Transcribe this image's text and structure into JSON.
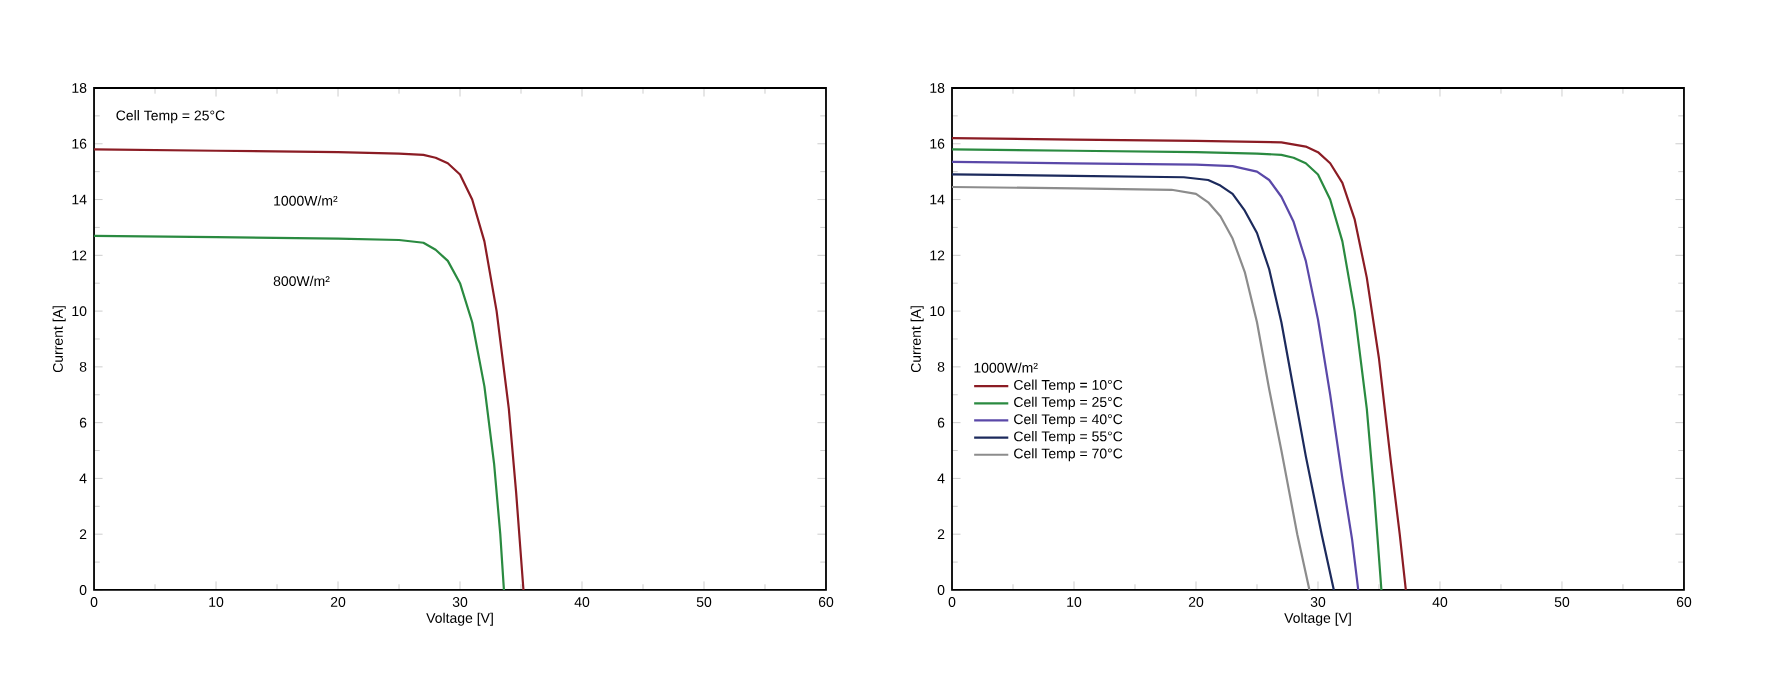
{
  "chart_data": [
    {
      "type": "line",
      "xlabel": "Voltage [V]",
      "ylabel": "Current [A]",
      "xlim": [
        0,
        60
      ],
      "ylim": [
        0,
        18
      ],
      "xticks": [
        0,
        10,
        20,
        30,
        40,
        50,
        60
      ],
      "yticks": [
        0,
        2,
        4,
        6,
        8,
        10,
        12,
        14,
        16,
        18
      ],
      "grid": false,
      "legend": false,
      "marker": "none",
      "line_style": "solid",
      "annotations": [
        "Cell Temp = 25°C",
        "1000W/m²",
        "800W/m²"
      ],
      "series": [
        {
          "color": "#8b1c24",
          "x": [
            0,
            10,
            20,
            25,
            27,
            28,
            29,
            30,
            31,
            32,
            33,
            34,
            34.6,
            35.2
          ],
          "values": [
            15.8,
            15.75,
            15.7,
            15.65,
            15.6,
            15.5,
            15.3,
            14.9,
            14.0,
            12.5,
            10.0,
            6.5,
            3.5,
            0
          ]
        },
        {
          "color": "#2a8a40",
          "x": [
            0,
            10,
            20,
            25,
            27,
            28,
            29,
            30,
            31,
            32,
            32.8,
            33.3,
            33.6
          ],
          "values": [
            12.7,
            12.65,
            12.6,
            12.55,
            12.45,
            12.2,
            11.8,
            11.0,
            9.6,
            7.3,
            4.5,
            2.0,
            0
          ]
        }
      ]
    },
    {
      "type": "line",
      "xlabel": "Voltage [V]",
      "ylabel": "Current [A]",
      "xlim": [
        0,
        60
      ],
      "ylim": [
        0,
        18
      ],
      "xticks": [
        0,
        10,
        20,
        30,
        40,
        50,
        60
      ],
      "yticks": [
        0,
        2,
        4,
        6,
        8,
        10,
        12,
        14,
        16,
        18
      ],
      "grid": false,
      "legend": "left",
      "legend_title": "1000W/m²",
      "marker": "none",
      "line_style": "solid",
      "series": [
        {
          "name": "Cell Temp = 10°C",
          "color": "#8b1c24",
          "x": [
            0,
            10,
            20,
            27,
            29,
            30,
            31,
            32,
            33,
            34,
            35,
            36,
            36.7,
            37.2
          ],
          "values": [
            16.2,
            16.15,
            16.1,
            16.05,
            15.9,
            15.7,
            15.3,
            14.6,
            13.3,
            11.2,
            8.3,
            4.5,
            2.0,
            0
          ]
        },
        {
          "name": "Cell Temp = 25°C",
          "color": "#2a8a40",
          "x": [
            0,
            10,
            20,
            25,
            27,
            28,
            29,
            30,
            31,
            32,
            33,
            34,
            34.6,
            35.2
          ],
          "values": [
            15.8,
            15.75,
            15.7,
            15.65,
            15.6,
            15.5,
            15.3,
            14.9,
            14.0,
            12.5,
            10.0,
            6.5,
            3.5,
            0
          ]
        },
        {
          "name": "Cell Temp = 40°C",
          "color": "#5a48a8",
          "x": [
            0,
            10,
            20,
            23,
            25,
            26,
            27,
            28,
            29,
            30,
            31,
            32,
            32.8,
            33.3
          ],
          "values": [
            15.35,
            15.3,
            15.25,
            15.2,
            15.0,
            14.7,
            14.1,
            13.2,
            11.8,
            9.7,
            7.0,
            4.0,
            1.8,
            0
          ]
        },
        {
          "name": "Cell Temp = 55°C",
          "color": "#1c2a5c",
          "x": [
            0,
            10,
            19,
            21,
            22,
            23,
            24,
            25,
            26,
            27,
            28,
            29,
            30.3,
            31.3
          ],
          "values": [
            14.9,
            14.85,
            14.8,
            14.7,
            14.5,
            14.2,
            13.6,
            12.8,
            11.5,
            9.6,
            7.2,
            4.8,
            2.0,
            0
          ]
        },
        {
          "name": "Cell Temp = 70°C",
          "color": "#8c8c8c",
          "x": [
            0,
            10,
            18,
            20,
            21,
            22,
            23,
            24,
            25,
            26,
            27,
            28.3,
            29.3
          ],
          "values": [
            14.45,
            14.4,
            14.35,
            14.2,
            13.9,
            13.4,
            12.6,
            11.4,
            9.6,
            7.2,
            5.0,
            2.0,
            0
          ]
        }
      ]
    }
  ]
}
